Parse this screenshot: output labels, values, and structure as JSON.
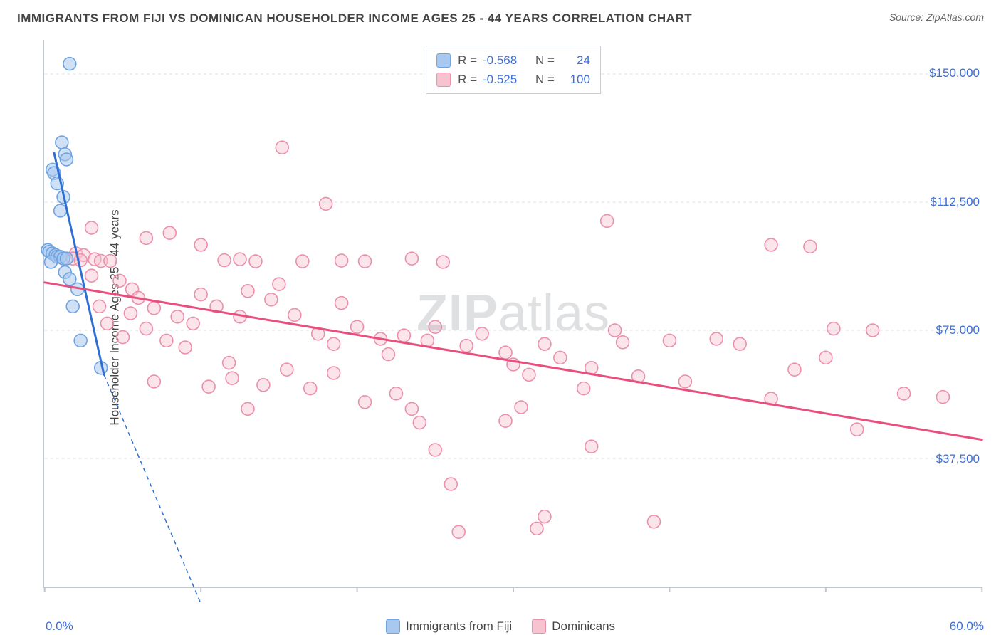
{
  "title": "IMMIGRANTS FROM FIJI VS DOMINICAN HOUSEHOLDER INCOME AGES 25 - 44 YEARS CORRELATION CHART",
  "source": "Source: ZipAtlas.com",
  "watermark_bold": "ZIP",
  "watermark_rest": "atlas",
  "chart": {
    "type": "scatter",
    "ylabel": "Householder Income Ages 25 - 44 years",
    "y_axis": {
      "min": 0,
      "max": 160000,
      "ticks": [
        37500,
        75000,
        112500,
        150000
      ],
      "tick_labels": [
        "$37,500",
        "$75,000",
        "$112,500",
        "$150,000"
      ],
      "label_color": "#3b6fd6",
      "grid_color": "#d8dce2",
      "grid_dash": "4,4"
    },
    "x_axis": {
      "min": 0,
      "max": 60,
      "ticks": [
        0,
        10,
        20,
        30,
        40,
        50,
        60
      ],
      "min_label": "0.0%",
      "max_label": "60.0%",
      "label_color": "#3b6fd6",
      "tick_color": "#bfc5cc"
    },
    "plot_bg": "#ffffff",
    "series": [
      {
        "name": "Immigrants from Fiji",
        "color_fill": "#a9c8ef",
        "color_stroke": "#6ea3e0",
        "fill_opacity": 0.55,
        "marker_r": 9,
        "R": "-0.568",
        "N": "24",
        "trend": {
          "x1": 0.6,
          "y1": 127000,
          "x2": 3.8,
          "y2": 62000,
          "color": "#2f6fd0",
          "width": 3,
          "dash_ext_x2": 10,
          "dash_ext_y2": -5000,
          "dash": "6,5"
        },
        "points": [
          [
            1.6,
            153000
          ],
          [
            1.1,
            130000
          ],
          [
            1.3,
            126500
          ],
          [
            1.4,
            125000
          ],
          [
            0.5,
            122000
          ],
          [
            0.6,
            121000
          ],
          [
            0.8,
            118000
          ],
          [
            1.2,
            114000
          ],
          [
            1.0,
            110000
          ],
          [
            0.2,
            98500
          ],
          [
            0.3,
            98000
          ],
          [
            0.5,
            97500
          ],
          [
            0.7,
            97000
          ],
          [
            0.8,
            96500
          ],
          [
            1.0,
            96500
          ],
          [
            1.2,
            96000
          ],
          [
            1.4,
            96000
          ],
          [
            0.4,
            95000
          ],
          [
            1.3,
            92000
          ],
          [
            1.6,
            90000
          ],
          [
            2.1,
            87000
          ],
          [
            1.8,
            82000
          ],
          [
            2.3,
            72000
          ],
          [
            3.6,
            64000
          ]
        ]
      },
      {
        "name": "Dominicans",
        "color_fill": "#f7c3d0",
        "color_stroke": "#ec8fab",
        "fill_opacity": 0.45,
        "marker_r": 9,
        "R": "-0.525",
        "N": "100",
        "trend": {
          "x1": 0,
          "y1": 89000,
          "x2": 60,
          "y2": 43000,
          "color": "#e94f7e",
          "width": 3
        },
        "points": [
          [
            15.2,
            128500
          ],
          [
            18.0,
            112000
          ],
          [
            3.0,
            105000
          ],
          [
            6.5,
            102000
          ],
          [
            8.0,
            103500
          ],
          [
            10.0,
            100000
          ],
          [
            36.0,
            107000
          ],
          [
            46.5,
            100000
          ],
          [
            49.0,
            99500
          ],
          [
            2.0,
            97500
          ],
          [
            2.5,
            97000
          ],
          [
            1.8,
            96000
          ],
          [
            2.3,
            95500
          ],
          [
            3.2,
            95800
          ],
          [
            3.6,
            95300
          ],
          [
            4.2,
            95300
          ],
          [
            11.5,
            95500
          ],
          [
            12.5,
            95800
          ],
          [
            13.5,
            95200
          ],
          [
            16.5,
            95200
          ],
          [
            19.0,
            95400
          ],
          [
            20.5,
            95200
          ],
          [
            23.5,
            96000
          ],
          [
            25.5,
            95000
          ],
          [
            3.0,
            91000
          ],
          [
            4.8,
            89500
          ],
          [
            5.6,
            87000
          ],
          [
            3.5,
            82000
          ],
          [
            5.5,
            80000
          ],
          [
            6.0,
            84500
          ],
          [
            7.0,
            81500
          ],
          [
            8.5,
            79000
          ],
          [
            9.5,
            77000
          ],
          [
            10.0,
            85500
          ],
          [
            11.0,
            82000
          ],
          [
            12.5,
            79000
          ],
          [
            13.0,
            86500
          ],
          [
            14.5,
            84000
          ],
          [
            15.0,
            88500
          ],
          [
            16.0,
            79500
          ],
          [
            17.5,
            74000
          ],
          [
            18.5,
            71000
          ],
          [
            19.0,
            83000
          ],
          [
            20.0,
            76000
          ],
          [
            21.5,
            72500
          ],
          [
            22.0,
            68000
          ],
          [
            23.0,
            73500
          ],
          [
            24.5,
            72000
          ],
          [
            25.0,
            76000
          ],
          [
            27.0,
            70500
          ],
          [
            28.0,
            74000
          ],
          [
            29.5,
            68500
          ],
          [
            30.0,
            65000
          ],
          [
            31.0,
            62000
          ],
          [
            32.0,
            71000
          ],
          [
            33.0,
            67000
          ],
          [
            35.0,
            64000
          ],
          [
            37.0,
            71500
          ],
          [
            38.0,
            61500
          ],
          [
            40.0,
            72000
          ],
          [
            41.0,
            60000
          ],
          [
            43.0,
            72500
          ],
          [
            44.5,
            71000
          ],
          [
            46.5,
            55000
          ],
          [
            48.0,
            63500
          ],
          [
            50.0,
            67000
          ],
          [
            52.0,
            46000
          ],
          [
            55.0,
            56500
          ],
          [
            57.5,
            55500
          ],
          [
            4.0,
            77000
          ],
          [
            5.0,
            73000
          ],
          [
            6.5,
            75500
          ],
          [
            7.8,
            72000
          ],
          [
            9.0,
            70000
          ],
          [
            12.0,
            61000
          ],
          [
            14.0,
            59000
          ],
          [
            15.5,
            63500
          ],
          [
            17.0,
            58000
          ],
          [
            18.5,
            62500
          ],
          [
            20.5,
            54000
          ],
          [
            22.5,
            56500
          ],
          [
            23.5,
            52000
          ],
          [
            24.0,
            48000
          ],
          [
            29.5,
            48500
          ],
          [
            30.5,
            52500
          ],
          [
            25.0,
            40000
          ],
          [
            35.0,
            41000
          ],
          [
            7.0,
            60000
          ],
          [
            10.5,
            58500
          ],
          [
            11.8,
            65500
          ],
          [
            13.0,
            52000
          ],
          [
            34.5,
            58000
          ],
          [
            26.0,
            30000
          ],
          [
            26.5,
            16000
          ],
          [
            31.5,
            17000
          ],
          [
            32.0,
            20500
          ],
          [
            39.0,
            19000
          ],
          [
            36.5,
            75000
          ],
          [
            50.5,
            75500
          ],
          [
            53.0,
            75000
          ]
        ]
      }
    ]
  },
  "legend": {
    "r_label": "R =",
    "n_label": "N ="
  },
  "bottom_legend": {
    "items": [
      "Immigrants from Fiji",
      "Dominicans"
    ]
  }
}
